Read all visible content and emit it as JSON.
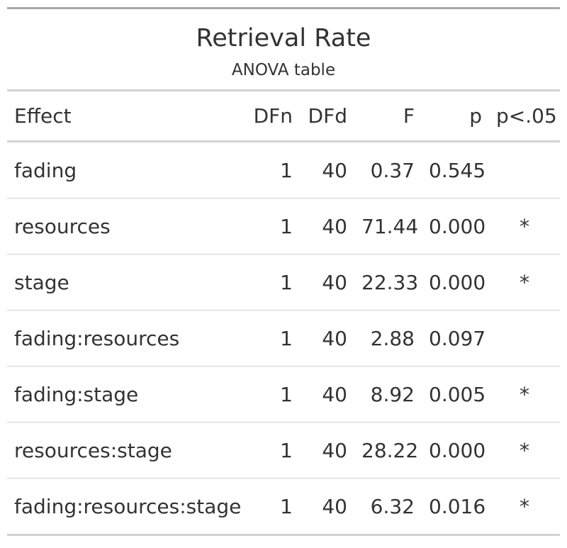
{
  "title": "Retrieval Rate",
  "subtitle": "ANOVA table",
  "columns": [
    "Effect",
    "DFn",
    "DFd",
    "F",
    "p",
    "p<.05"
  ],
  "rows": [
    {
      "effect": "fading",
      "dfn": "1",
      "dfd": "40",
      "f": "0.37",
      "p": "0.545",
      "sig": ""
    },
    {
      "effect": "resources",
      "dfn": "1",
      "dfd": "40",
      "f": "71.44",
      "p": "0.000",
      "sig": "*"
    },
    {
      "effect": "stage",
      "dfn": "1",
      "dfd": "40",
      "f": "22.33",
      "p": "0.000",
      "sig": "*"
    },
    {
      "effect": "fading:resources",
      "dfn": "1",
      "dfd": "40",
      "f": "2.88",
      "p": "0.097",
      "sig": ""
    },
    {
      "effect": "fading:stage",
      "dfn": "1",
      "dfd": "40",
      "f": "8.92",
      "p": "0.005",
      "sig": "*"
    },
    {
      "effect": "resources:stage",
      "dfn": "1",
      "dfd": "40",
      "f": "28.22",
      "p": "0.000",
      "sig": "*"
    },
    {
      "effect": "fading:resources:stage",
      "dfn": "1",
      "dfd": "40",
      "f": "6.32",
      "p": "0.016",
      "sig": "*"
    }
  ],
  "colors": {
    "text": "#333333",
    "rule": "#d3d3d3",
    "top_rule": "#a8a8a8",
    "background": "#ffffff"
  }
}
